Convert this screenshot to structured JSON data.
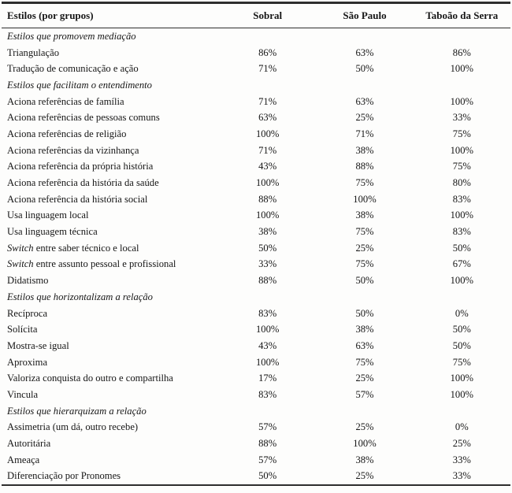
{
  "table": {
    "header": {
      "col0": "Estilos (por grupos)",
      "cols": [
        "Sobral",
        "São Paulo",
        "Taboão da Serra"
      ]
    },
    "rows": [
      {
        "type": "group",
        "label": "Estilos que promovem mediação"
      },
      {
        "type": "data",
        "label": "Triangulação",
        "values": [
          "86%",
          "63%",
          "86%"
        ]
      },
      {
        "type": "data",
        "label": "Tradução de comunicação e ação",
        "values": [
          "71%",
          "50%",
          "100%"
        ]
      },
      {
        "type": "group",
        "label": "Estilos que facilitam o entendimento"
      },
      {
        "type": "data",
        "label": "Aciona referências de família",
        "values": [
          "71%",
          "63%",
          "100%"
        ]
      },
      {
        "type": "data",
        "label": "Aciona referências de pessoas comuns",
        "values": [
          "63%",
          "25%",
          "33%"
        ]
      },
      {
        "type": "data",
        "label": "Aciona referências de religião",
        "values": [
          "100%",
          "71%",
          "75%"
        ]
      },
      {
        "type": "data",
        "label": "Aciona referências da vizinhança",
        "values": [
          "71%",
          "38%",
          "100%"
        ]
      },
      {
        "type": "data",
        "label": "Aciona referência da própria história",
        "values": [
          "43%",
          "88%",
          "75%"
        ]
      },
      {
        "type": "data",
        "label": "Aciona referência da história da saúde",
        "values": [
          "100%",
          "75%",
          "80%"
        ]
      },
      {
        "type": "data",
        "label": "Aciona referência da história social",
        "values": [
          "88%",
          "100%",
          "83%"
        ]
      },
      {
        "type": "data",
        "label": "Usa linguagem local",
        "values": [
          "100%",
          "38%",
          "100%"
        ]
      },
      {
        "type": "data",
        "label": "Usa linguagem técnica",
        "values": [
          "38%",
          "75%",
          "83%"
        ]
      },
      {
        "type": "data",
        "italic_prefix": "Switch",
        "label": " entre saber técnico e local",
        "values": [
          "50%",
          "25%",
          "50%"
        ]
      },
      {
        "type": "data",
        "italic_prefix": "Switch",
        "label": " entre assunto pessoal e profissional",
        "values": [
          "33%",
          "75%",
          "67%"
        ]
      },
      {
        "type": "data",
        "label": "Didatismo",
        "values": [
          "88%",
          "50%",
          "100%"
        ]
      },
      {
        "type": "group",
        "label": "Estilos que horizontalizam a relação"
      },
      {
        "type": "data",
        "label": "Recíproca",
        "values": [
          "83%",
          "50%",
          "0%"
        ]
      },
      {
        "type": "data",
        "label": "Solícita",
        "values": [
          "100%",
          "38%",
          "50%"
        ]
      },
      {
        "type": "data",
        "label": "Mostra-se igual",
        "values": [
          "43%",
          "63%",
          "50%"
        ]
      },
      {
        "type": "data",
        "label": "Aproxima",
        "values": [
          "100%",
          "75%",
          "75%"
        ]
      },
      {
        "type": "data",
        "label": "Valoriza conquista do outro e compartilha",
        "values": [
          "17%",
          "25%",
          "100%"
        ]
      },
      {
        "type": "data",
        "label": "Vincula",
        "values": [
          "83%",
          "57%",
          "100%"
        ]
      },
      {
        "type": "group",
        "label": "Estilos que hierarquizam a relação"
      },
      {
        "type": "data",
        "label": "Assimetria (um dá, outro recebe)",
        "values": [
          "57%",
          "25%",
          "0%"
        ]
      },
      {
        "type": "data",
        "label": "Autoritária",
        "values": [
          "88%",
          "100%",
          "25%"
        ]
      },
      {
        "type": "data",
        "label": "Ameaça",
        "values": [
          "57%",
          "38%",
          "33%"
        ]
      },
      {
        "type": "data",
        "label": "Diferenciação por Pronomes",
        "values": [
          "50%",
          "25%",
          "33%"
        ]
      }
    ]
  },
  "colors": {
    "text": "#161616",
    "rule": "#2e2e2e",
    "background": "#fdfdfc"
  }
}
